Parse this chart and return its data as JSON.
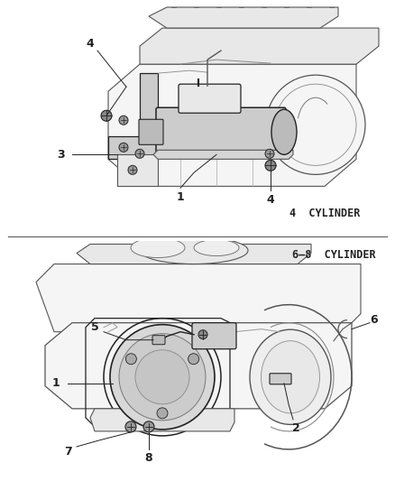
{
  "bg_color": "#ffffff",
  "line_color": "#555555",
  "dark_line": "#222222",
  "light_fill": "#f5f5f5",
  "mid_fill": "#e8e8e8",
  "dark_fill": "#cccccc",
  "figure_width": 4.38,
  "figure_height": 5.33,
  "label_fontsize": 8.5,
  "callout_fontsize": 9,
  "top_label": "4  CYLINDER",
  "bottom_label": "6–8  CYLINDER"
}
